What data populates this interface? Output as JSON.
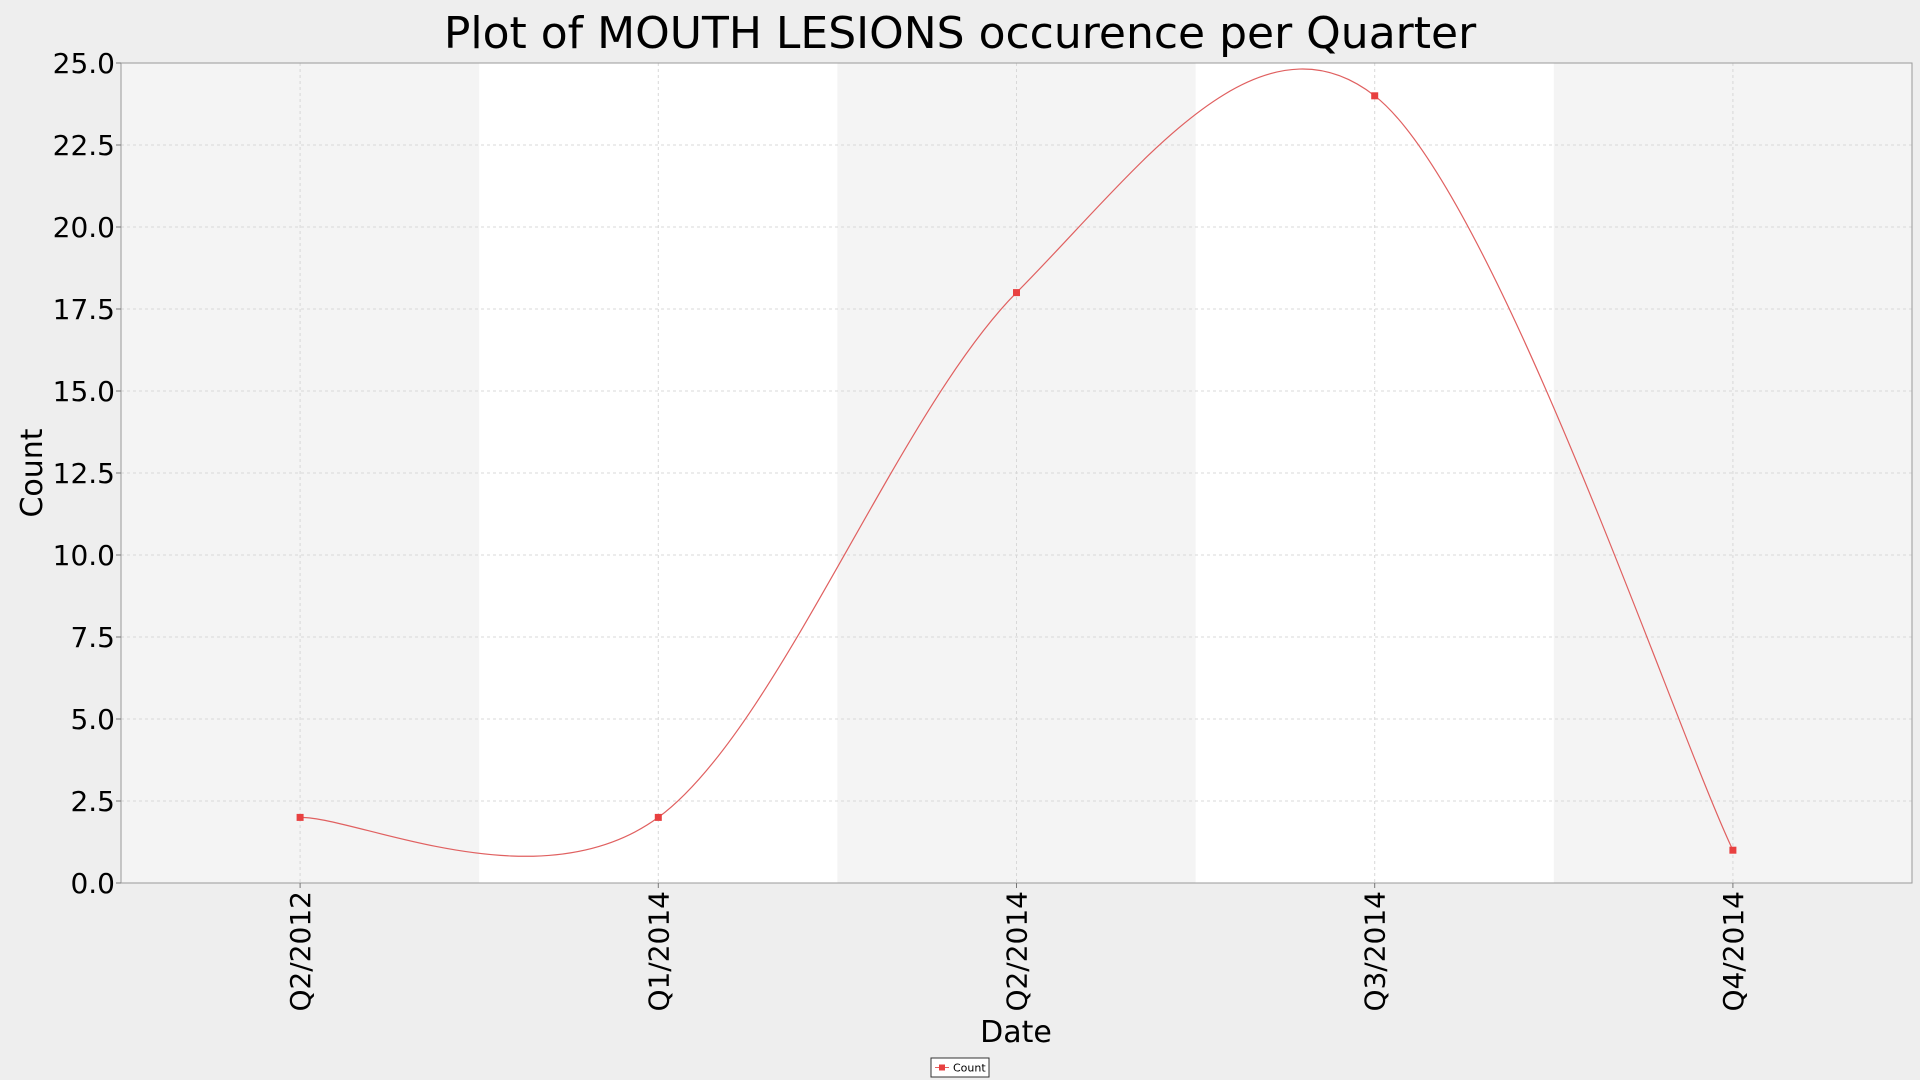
{
  "chart_data": {
    "type": "line",
    "title": "Plot of MOUTH LESIONS occurence per Quarter",
    "xlabel": "Date",
    "ylabel": "Count",
    "ylim": [
      0,
      25
    ],
    "yticks": [
      "0.0",
      "2.5",
      "5.0",
      "7.5",
      "10.0",
      "12.5",
      "15.0",
      "17.5",
      "20.0",
      "22.5",
      "25.0"
    ],
    "categories": [
      "Q2/2012",
      "Q1/2014",
      "Q2/2014",
      "Q3/2014",
      "Q4/2014"
    ],
    "series": [
      {
        "name": "Count",
        "color": "#e06060",
        "values": [
          2,
          2,
          18,
          24,
          1
        ]
      }
    ],
    "legend": {
      "position": "bottom-center",
      "label": "Count"
    },
    "grid": true,
    "background_bands": [
      "#f4f4f4",
      "#ffffff",
      "#f4f4f4",
      "#ffffff",
      "#f4f4f4"
    ]
  }
}
